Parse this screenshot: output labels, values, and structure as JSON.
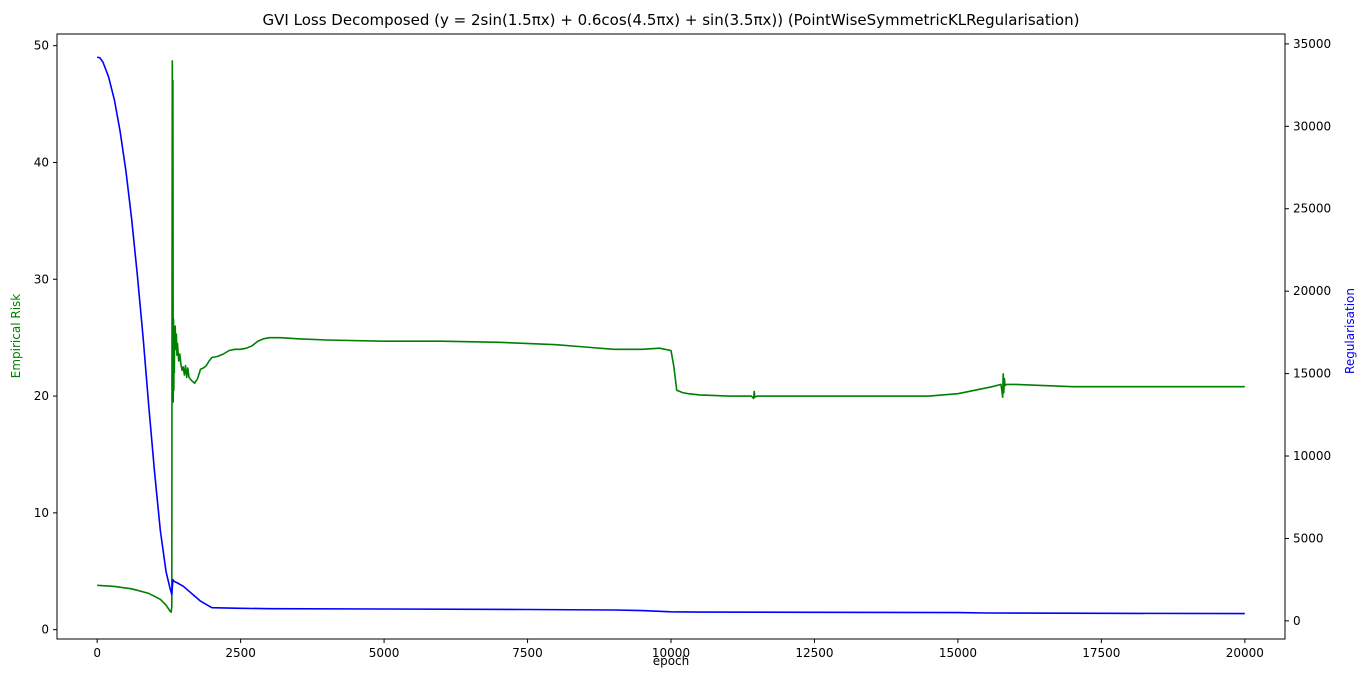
{
  "chart_data": {
    "type": "line",
    "title": "GVI Loss Decomposed (y = 2sin(1.5πx) + 0.6cos(4.5πx) + sin(3.5πx)) (PointWiseSymmetricKLRegularisation)",
    "xlabel": "epoch",
    "ylabel_left": "Empirical Risk",
    "ylabel_right": "Regularisation",
    "xlim": [
      -700,
      20700
    ],
    "ylim_left": [
      -0.8,
      51
    ],
    "ylim_right": [
      -1100,
      35600
    ],
    "x_ticks": [
      0,
      2500,
      5000,
      7500,
      10000,
      12500,
      15000,
      17500,
      20000
    ],
    "y_ticks_left": [
      0,
      10,
      20,
      30,
      40,
      50
    ],
    "y_ticks_right": [
      0,
      5000,
      10000,
      15000,
      20000,
      25000,
      30000,
      35000
    ],
    "grid": false,
    "colors": {
      "empirical_risk": "#008000",
      "regularisation": "#0000ff"
    },
    "series": [
      {
        "axis": "left",
        "color": "#008000",
        "x": [
          0,
          300,
          600,
          900,
          1100,
          1200,
          1270,
          1290,
          1300,
          1305,
          1310,
          1315,
          1320,
          1325,
          1330,
          1335,
          1340,
          1345,
          1350,
          1360,
          1370,
          1380,
          1390,
          1400,
          1420,
          1440,
          1460,
          1480,
          1500,
          1520,
          1540,
          1560,
          1580,
          1600,
          1650,
          1700,
          1750,
          1800,
          1850,
          1900,
          1950,
          2000,
          2100,
          2200,
          2300,
          2400,
          2500,
          2600,
          2700,
          2800,
          2900,
          3000,
          3200,
          3500,
          4000,
          5000,
          6000,
          7000,
          8000,
          8500,
          9000,
          9500,
          9800,
          10000,
          10050,
          10100,
          10150,
          10200,
          10300,
          10500,
          11000,
          11400,
          11440,
          11450,
          11460,
          11500,
          12000,
          13000,
          14000,
          14500,
          15000,
          15300,
          15600,
          15750,
          15780,
          15790,
          15800,
          15810,
          15820,
          15850,
          16000,
          16500,
          17000,
          17500,
          18000,
          18500,
          19000,
          19500,
          20000
        ],
        "y": [
          3.8,
          3.7,
          3.5,
          3.1,
          2.6,
          2.1,
          1.6,
          1.5,
          2.0,
          35.0,
          48.7,
          25.0,
          47.0,
          19.5,
          26.6,
          20.5,
          25.0,
          22.0,
          24.5,
          26.0,
          24.0,
          25.3,
          23.5,
          24.5,
          23.0,
          23.6,
          22.7,
          22.2,
          22.5,
          21.8,
          22.6,
          21.6,
          22.4,
          21.6,
          21.3,
          21.1,
          21.5,
          22.3,
          22.4,
          22.6,
          23.0,
          23.3,
          23.4,
          23.6,
          23.9,
          24.0,
          24.0,
          24.1,
          24.3,
          24.7,
          24.9,
          25.0,
          25.0,
          24.9,
          24.8,
          24.7,
          24.7,
          24.6,
          24.4,
          24.2,
          24.0,
          24.0,
          24.1,
          23.9,
          22.5,
          20.5,
          20.4,
          20.3,
          20.2,
          20.1,
          20.0,
          20.0,
          19.8,
          20.4,
          19.9,
          20.0,
          20.0,
          20.0,
          20.0,
          20.0,
          20.2,
          20.5,
          20.8,
          21.0,
          19.9,
          21.9,
          20.3,
          21.5,
          20.9,
          21.0,
          21.0,
          20.9,
          20.8,
          20.8,
          20.8,
          20.8,
          20.8,
          20.8,
          20.8
        ]
      },
      {
        "axis": "right",
        "color": "#0000ff",
        "x": [
          0,
          50,
          100,
          200,
          300,
          400,
          500,
          600,
          700,
          800,
          900,
          1000,
          1100,
          1200,
          1260,
          1300,
          1320,
          1340,
          1400,
          1500,
          1600,
          1700,
          1800,
          1900,
          2000,
          2500,
          3000,
          5000,
          7500,
          9000,
          9500,
          10000,
          10500,
          12500,
          15000,
          15500,
          16000,
          17500,
          20000
        ],
        "y": [
          34200,
          34150,
          33900,
          33000,
          31600,
          29700,
          27300,
          24400,
          21000,
          17200,
          13000,
          9000,
          5500,
          3000,
          2100,
          1600,
          2500,
          2400,
          2300,
          2100,
          1800,
          1500,
          1200,
          1000,
          800,
          760,
          740,
          720,
          690,
          660,
          620,
          550,
          530,
          520,
          500,
          480,
          470,
          460,
          440
        ]
      }
    ]
  }
}
